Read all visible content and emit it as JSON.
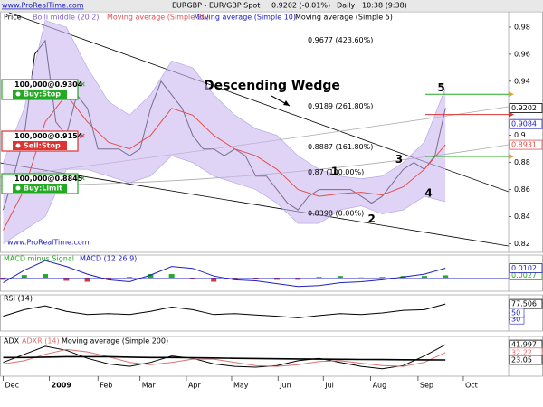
{
  "header": {
    "site": "www.ProRealTime.com",
    "title": "EURGBP - EUR/GBP Spot",
    "quote": "0.9202 (-0.01%)",
    "period": "Daily",
    "time": "10:38 (9:38)"
  },
  "chart_data": [
    {
      "type": "line",
      "title": "Descending Wedge",
      "watermark": "www.ProRealTime.com",
      "x": [
        0,
        1,
        2,
        3,
        4,
        5,
        6,
        7,
        8,
        9,
        10,
        11,
        12,
        13,
        14,
        15,
        16,
        17,
        18,
        19,
        20,
        21,
        22,
        23,
        24,
        25,
        26,
        27,
        28,
        29,
        30,
        31,
        32,
        33,
        34,
        35,
        36,
        37,
        38,
        39,
        40,
        41,
        42
      ],
      "xlim": [
        -0.3,
        48
      ],
      "xticks": [
        {
          "value": 0,
          "label": "Dec"
        },
        {
          "value": 4.4,
          "label": "2009"
        },
        {
          "value": 9,
          "label": "Feb"
        },
        {
          "value": 13,
          "label": "Mar"
        },
        {
          "value": 17.4,
          "label": "Apr"
        },
        {
          "value": 21.7,
          "label": "May"
        },
        {
          "value": 26.1,
          "label": "Jun"
        },
        {
          "value": 30.4,
          "label": "Jul"
        },
        {
          "value": 34.9,
          "label": "Aug"
        },
        {
          "value": 39.4,
          "label": "Sep"
        },
        {
          "value": 43.7,
          "label": "Oct"
        }
      ],
      "ylim": [
        0.815,
        0.99
      ],
      "yticks": [
        0.82,
        0.84,
        0.86,
        0.88,
        0.9,
        0.94,
        0.96,
        0.98
      ],
      "series": [
        {
          "name": "Price",
          "color": "#000000",
          "values": [
            0.845,
            0.87,
            0.9,
            0.96,
            0.97,
            0.91,
            0.9,
            0.93,
            0.92,
            0.89,
            0.89,
            0.89,
            0.885,
            0.89,
            0.92,
            0.94,
            0.93,
            0.92,
            0.9,
            0.89,
            0.89,
            0.885,
            0.89,
            0.885,
            0.87,
            0.87,
            0.86,
            0.85,
            0.845,
            0.855,
            0.86,
            0.86,
            0.86,
            0.86,
            0.855,
            0.85,
            0.855,
            0.865,
            0.875,
            0.88,
            0.875,
            0.885,
            0.9202
          ]
        },
        {
          "name": "Bolli middle (20 2)",
          "color": "#c9b8f0",
          "type": "band",
          "x": [
            0,
            2,
            4,
            6,
            8,
            10,
            12,
            14,
            16,
            18,
            20,
            22,
            24,
            26,
            28,
            30,
            32,
            34,
            36,
            38,
            40,
            42
          ],
          "upper": [
            0.88,
            0.92,
            0.985,
            0.98,
            0.95,
            0.925,
            0.915,
            0.93,
            0.955,
            0.95,
            0.93,
            0.915,
            0.905,
            0.9,
            0.885,
            0.875,
            0.87,
            0.868,
            0.87,
            0.88,
            0.895,
            0.935
          ],
          "lower": [
            0.82,
            0.83,
            0.84,
            0.875,
            0.875,
            0.87,
            0.865,
            0.87,
            0.885,
            0.88,
            0.87,
            0.865,
            0.86,
            0.85,
            0.835,
            0.835,
            0.845,
            0.848,
            0.842,
            0.845,
            0.855,
            0.851
          ]
        },
        {
          "name": "Moving average (Simple 20)",
          "color": "#e05050",
          "x": [
            0,
            2,
            4,
            6,
            8,
            10,
            12,
            14,
            16,
            18,
            20,
            22,
            24,
            26,
            28,
            30,
            32,
            34,
            36,
            38,
            40,
            42
          ],
          "values": [
            0.83,
            0.86,
            0.91,
            0.93,
            0.91,
            0.895,
            0.89,
            0.9,
            0.92,
            0.915,
            0.9,
            0.89,
            0.885,
            0.875,
            0.86,
            0.855,
            0.857,
            0.858,
            0.856,
            0.862,
            0.875,
            0.8931
          ]
        }
      ],
      "other_legend": [
        {
          "text": "Moving average (Simple 10)",
          "color": "#2020c0"
        },
        {
          "text": "Moving average (Simple 5)",
          "color": "#000000"
        }
      ],
      "tags": [
        {
          "value": 0.9084,
          "color": "#2020c0"
        }
      ],
      "fib": [
        {
          "label": "0.9677 (423.60%)",
          "value": 0.9677
        },
        {
          "label": "0.9189 (261.80%)",
          "value": 0.9189
        },
        {
          "label": "0.8887 (161.80%)",
          "value": 0.8887
        },
        {
          "label": "0.87 (100.00%)",
          "value": 0.87
        },
        {
          "label": "0.8398 (0.00%)",
          "value": 0.8398
        }
      ],
      "waves": [
        {
          "label": "1",
          "x": 31.5,
          "value": 0.873
        },
        {
          "label": "2",
          "x": 35,
          "value": 0.838
        },
        {
          "label": "3",
          "x": 37.6,
          "value": 0.882
        },
        {
          "label": "4",
          "x": 40.4,
          "value": 0.857
        },
        {
          "label": "5",
          "x": 41.6,
          "value": 0.935
        }
      ],
      "orders": [
        {
          "size": "100,000@0.9304",
          "action": "Buy:Stop",
          "value": 0.9304,
          "color": "#22aa22"
        },
        {
          "size": "100,000@0.9154",
          "action": "Sell:Stop",
          "value": 0.9154,
          "color": "#dd3333"
        },
        {
          "size": "100,000@0.8845",
          "action": "Buy:Limit",
          "value": 0.8845,
          "color": "#22aa22"
        }
      ]
    },
    {
      "type": "line",
      "x": [
        0,
        2,
        4,
        6,
        8,
        10,
        12,
        14,
        16,
        18,
        20,
        22,
        24,
        26,
        28,
        30,
        32,
        34,
        36,
        38,
        40,
        42
      ],
      "ylim": [
        -0.012,
        0.022
      ],
      "series": [
        {
          "name": "MACD minus Signal",
          "color": "#22aa22",
          "type": "bar",
          "values": [
            -0.002,
            0.003,
            0.004,
            -0.003,
            -0.004,
            -0.002,
            0.001,
            0.004,
            0.004,
            -0.001,
            -0.004,
            -0.002,
            -0.001,
            -0.002,
            -0.002,
            0.001,
            0.002,
            0.0005,
            0.001,
            0.002,
            0.002,
            0.0027
          ]
        },
        {
          "name": "MACD (12 26 9)",
          "color": "#2020c0",
          "values": [
            -0.005,
            0.008,
            0.018,
            0.012,
            0.004,
            -0.002,
            -0.004,
            0.003,
            0.012,
            0.01,
            0.002,
            -0.002,
            -0.003,
            -0.006,
            -0.009,
            -0.008,
            -0.005,
            -0.004,
            -0.002,
            0.001,
            0.004,
            0.0102
          ]
        }
      ]
    },
    {
      "type": "line",
      "x": [
        0,
        2,
        4,
        6,
        8,
        10,
        12,
        14,
        16,
        18,
        20,
        22,
        24,
        26,
        28,
        30,
        32,
        34,
        36,
        38,
        40,
        42
      ],
      "ylim": [
        0,
        100
      ],
      "yticks": [
        30,
        50
      ],
      "series": [
        {
          "name": "RSI (14)",
          "color": "#000000",
          "values": [
            40,
            60,
            72,
            55,
            45,
            48,
            45,
            55,
            68,
            60,
            45,
            48,
            44,
            40,
            35,
            42,
            48,
            45,
            50,
            58,
            60,
            77.506
          ]
        }
      ]
    },
    {
      "type": "line",
      "x": [
        0,
        2,
        4,
        6,
        8,
        10,
        12,
        14,
        16,
        18,
        20,
        22,
        24,
        26,
        28,
        30,
        32,
        34,
        36,
        38,
        40,
        42
      ],
      "ylim": [
        5,
        50
      ],
      "series": [
        {
          "name": "ADX",
          "color": "#000000",
          "values": [
            20,
            30,
            40,
            35,
            25,
            18,
            15,
            20,
            28,
            25,
            18,
            15,
            14,
            16,
            22,
            25,
            20,
            15,
            12,
            16,
            28,
            41.997
          ]
        },
        {
          "name": "ADXR (14)",
          "color": "#e07070",
          "values": [
            18,
            22,
            30,
            36,
            33,
            27,
            20,
            17,
            20,
            24,
            24,
            20,
            16,
            15,
            17,
            21,
            22,
            19,
            16,
            15,
            20,
            32.22
          ]
        },
        {
          "name": "Moving average (Simple 200)",
          "color": "#000000",
          "values": [
            26,
            26,
            26.5,
            27,
            27,
            27,
            26.5,
            26,
            26,
            25.8,
            25.5,
            25,
            24.8,
            24.5,
            24.2,
            24,
            23.8,
            23.6,
            23.4,
            23.2,
            23.1,
            23.05
          ]
        }
      ]
    }
  ]
}
